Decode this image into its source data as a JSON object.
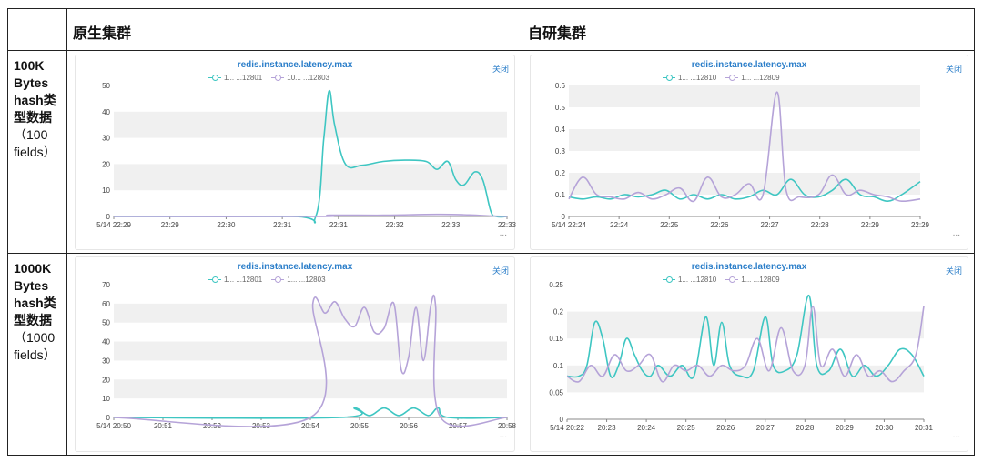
{
  "table": {
    "col1_header": "原生集群",
    "col2_header": "自研集群",
    "rows": [
      {
        "label_bold": [
          "100K",
          "Bytes",
          "hash类",
          "型数据"
        ],
        "label_normal": [
          "（100",
          "fields）"
        ]
      },
      {
        "label_bold": [
          "1000K",
          "Bytes",
          "hash类",
          "型数据"
        ],
        "label_normal": [
          "（1000",
          "fields）"
        ]
      }
    ]
  },
  "panel_ui": {
    "close_label": "关闭",
    "more_label": "..."
  },
  "colors": {
    "teal": "#3ec6c2",
    "purple": "#b5a3d8",
    "band": "#f0f0f0",
    "axis": "#888888"
  },
  "chart_data": [
    {
      "type": "line",
      "title": "redis.instance.latency.max",
      "legend": [
        {
          "name": "1...          ...12801",
          "color": "#3ec6c2"
        },
        {
          "name": "10...         ...12803",
          "color": "#b5a3d8"
        }
      ],
      "ylim": [
        0,
        50
      ],
      "yticks": [
        0,
        10,
        20,
        30,
        40,
        50
      ],
      "xticks": [
        "5/14 22:29",
        "22:29",
        "22:30",
        "22:31",
        "22:31",
        "22:32",
        "22:33",
        "22:33"
      ],
      "xrange": [
        0,
        7.3
      ],
      "series": [
        {
          "name": "12801",
          "color": "#3ec6c2",
          "points": [
            [
              0,
              0
            ],
            [
              3.3,
              0
            ],
            [
              3.75,
              0
            ],
            [
              3.9,
              30
            ],
            [
              4.0,
              48
            ],
            [
              4.1,
              35
            ],
            [
              4.3,
              20
            ],
            [
              4.6,
              19.5
            ],
            [
              5.0,
              21
            ],
            [
              5.4,
              21.5
            ],
            [
              5.8,
              21
            ],
            [
              6.0,
              18
            ],
            [
              6.2,
              21
            ],
            [
              6.35,
              14
            ],
            [
              6.5,
              12
            ],
            [
              6.7,
              17
            ],
            [
              6.85,
              14
            ],
            [
              7.0,
              2
            ],
            [
              7.1,
              0
            ],
            [
              7.3,
              0
            ]
          ]
        },
        {
          "name": "12803",
          "color": "#b5a3d8",
          "points": [
            [
              0,
              0
            ],
            [
              3.75,
              0
            ],
            [
              4.0,
              0.5
            ],
            [
              5.0,
              0.5
            ],
            [
              6.0,
              0.8
            ],
            [
              6.6,
              0.6
            ],
            [
              7.0,
              0.2
            ],
            [
              7.3,
              0
            ]
          ]
        }
      ]
    },
    {
      "type": "line",
      "title": "redis.instance.latency.max",
      "legend": [
        {
          "name": "1...          ...12810",
          "color": "#3ec6c2"
        },
        {
          "name": "1...          ...12809",
          "color": "#b5a3d8"
        }
      ],
      "ylim": [
        0,
        0.6
      ],
      "yticks": [
        0,
        0.1,
        0.2,
        0.3,
        0.4,
        0.5,
        0.6
      ],
      "xticks": [
        "5/14 22:24",
        "22:24",
        "22:25",
        "22:26",
        "22:27",
        "22:28",
        "22:29",
        "22:29"
      ],
      "xrange": [
        0,
        7.6
      ],
      "series": [
        {
          "name": "12810",
          "color": "#3ec6c2",
          "points": [
            [
              0,
              0.09
            ],
            [
              0.3,
              0.08
            ],
            [
              0.6,
              0.09
            ],
            [
              0.9,
              0.08
            ],
            [
              1.2,
              0.1
            ],
            [
              1.5,
              0.09
            ],
            [
              1.8,
              0.1
            ],
            [
              2.1,
              0.12
            ],
            [
              2.4,
              0.08
            ],
            [
              2.7,
              0.1
            ],
            [
              3.0,
              0.08
            ],
            [
              3.3,
              0.1
            ],
            [
              3.6,
              0.08
            ],
            [
              3.9,
              0.09
            ],
            [
              4.2,
              0.12
            ],
            [
              4.5,
              0.1
            ],
            [
              4.8,
              0.17
            ],
            [
              5.1,
              0.1
            ],
            [
              5.4,
              0.09
            ],
            [
              5.7,
              0.12
            ],
            [
              6.0,
              0.17
            ],
            [
              6.3,
              0.1
            ],
            [
              6.6,
              0.09
            ],
            [
              6.9,
              0.07
            ],
            [
              7.2,
              0.1
            ],
            [
              7.6,
              0.16
            ]
          ]
        },
        {
          "name": "12809",
          "color": "#b5a3d8",
          "points": [
            [
              0,
              0.08
            ],
            [
              0.3,
              0.18
            ],
            [
              0.6,
              0.1
            ],
            [
              0.9,
              0.09
            ],
            [
              1.2,
              0.08
            ],
            [
              1.5,
              0.11
            ],
            [
              1.8,
              0.08
            ],
            [
              2.1,
              0.1
            ],
            [
              2.4,
              0.13
            ],
            [
              2.7,
              0.07
            ],
            [
              3.0,
              0.18
            ],
            [
              3.3,
              0.09
            ],
            [
              3.6,
              0.1
            ],
            [
              3.9,
              0.15
            ],
            [
              4.2,
              0.1
            ],
            [
              4.5,
              0.57
            ],
            [
              4.7,
              0.12
            ],
            [
              5.0,
              0.09
            ],
            [
              5.4,
              0.1
            ],
            [
              5.7,
              0.19
            ],
            [
              6.0,
              0.1
            ],
            [
              6.3,
              0.12
            ],
            [
              6.6,
              0.1
            ],
            [
              6.9,
              0.09
            ],
            [
              7.2,
              0.07
            ],
            [
              7.6,
              0.08
            ]
          ]
        }
      ]
    },
    {
      "type": "line",
      "title": "redis.instance.latency.max",
      "legend": [
        {
          "name": "1...          ...12801",
          "color": "#3ec6c2"
        },
        {
          "name": "1...          ...12803",
          "color": "#b5a3d8"
        }
      ],
      "ylim": [
        0,
        70
      ],
      "yticks": [
        0,
        10,
        20,
        30,
        40,
        50,
        60,
        70
      ],
      "xticks": [
        "5/14 20:50",
        "20:51",
        "20:52",
        "20:53",
        "20:54",
        "20:55",
        "20:56",
        "20:57",
        "20:58"
      ],
      "xrange": [
        0,
        8
      ],
      "series": [
        {
          "name": "12801",
          "color": "#3ec6c2",
          "points": [
            [
              0,
              0
            ],
            [
              4.6,
              0
            ],
            [
              4.9,
              5
            ],
            [
              5.2,
              1
            ],
            [
              5.5,
              5
            ],
            [
              5.8,
              1
            ],
            [
              6.1,
              5
            ],
            [
              6.4,
              1
            ],
            [
              6.6,
              5
            ],
            [
              6.8,
              0
            ],
            [
              8,
              0
            ]
          ]
        },
        {
          "name": "12803",
          "color": "#b5a3d8",
          "points": [
            [
              0,
              0
            ],
            [
              4.0,
              0
            ],
            [
              4.05,
              60
            ],
            [
              4.3,
              55
            ],
            [
              4.5,
              61
            ],
            [
              4.7,
              52
            ],
            [
              4.9,
              48
            ],
            [
              5.1,
              58
            ],
            [
              5.3,
              45
            ],
            [
              5.5,
              47
            ],
            [
              5.7,
              60
            ],
            [
              5.85,
              25
            ],
            [
              6.0,
              32
            ],
            [
              6.15,
              58
            ],
            [
              6.3,
              30
            ],
            [
              6.45,
              59
            ],
            [
              6.55,
              58
            ],
            [
              6.65,
              0
            ],
            [
              8,
              0
            ]
          ]
        }
      ]
    },
    {
      "type": "line",
      "title": "redis.instance.latency.max",
      "legend": [
        {
          "name": "1...          ...12810",
          "color": "#3ec6c2"
        },
        {
          "name": "1...          ...12809",
          "color": "#b5a3d8"
        }
      ],
      "ylim": [
        0,
        0.25
      ],
      "yticks": [
        0,
        0.05,
        0.1,
        0.15,
        0.2,
        0.25
      ],
      "xticks": [
        "5/14 20:22",
        "20:23",
        "20:24",
        "20:25",
        "20:26",
        "20:27",
        "20:28",
        "20:29",
        "20:30",
        "20:31"
      ],
      "xrange": [
        0,
        9
      ],
      "series": [
        {
          "name": "12810",
          "color": "#3ec6c2",
          "points": [
            [
              0,
              0.08
            ],
            [
              0.3,
              0.08
            ],
            [
              0.5,
              0.1
            ],
            [
              0.7,
              0.18
            ],
            [
              0.9,
              0.15
            ],
            [
              1.1,
              0.08
            ],
            [
              1.3,
              0.1
            ],
            [
              1.5,
              0.15
            ],
            [
              1.7,
              0.12
            ],
            [
              1.9,
              0.09
            ],
            [
              2.1,
              0.08
            ],
            [
              2.3,
              0.1
            ],
            [
              2.6,
              0.08
            ],
            [
              2.9,
              0.1
            ],
            [
              3.2,
              0.08
            ],
            [
              3.5,
              0.19
            ],
            [
              3.7,
              0.1
            ],
            [
              3.9,
              0.18
            ],
            [
              4.1,
              0.1
            ],
            [
              4.4,
              0.08
            ],
            [
              4.7,
              0.09
            ],
            [
              5.0,
              0.19
            ],
            [
              5.2,
              0.1
            ],
            [
              5.5,
              0.09
            ],
            [
              5.8,
              0.12
            ],
            [
              6.1,
              0.23
            ],
            [
              6.3,
              0.1
            ],
            [
              6.6,
              0.09
            ],
            [
              6.9,
              0.13
            ],
            [
              7.2,
              0.08
            ],
            [
              7.5,
              0.1
            ],
            [
              7.8,
              0.08
            ],
            [
              8.1,
              0.1
            ],
            [
              8.4,
              0.13
            ],
            [
              8.7,
              0.12
            ],
            [
              9.0,
              0.08
            ]
          ]
        },
        {
          "name": "12809",
          "color": "#b5a3d8",
          "points": [
            [
              0,
              0.08
            ],
            [
              0.3,
              0.07
            ],
            [
              0.6,
              0.1
            ],
            [
              0.9,
              0.08
            ],
            [
              1.2,
              0.12
            ],
            [
              1.5,
              0.09
            ],
            [
              1.8,
              0.1
            ],
            [
              2.1,
              0.12
            ],
            [
              2.4,
              0.07
            ],
            [
              2.7,
              0.1
            ],
            [
              3.0,
              0.09
            ],
            [
              3.3,
              0.1
            ],
            [
              3.6,
              0.08
            ],
            [
              3.9,
              0.1
            ],
            [
              4.2,
              0.09
            ],
            [
              4.5,
              0.1
            ],
            [
              4.8,
              0.15
            ],
            [
              5.1,
              0.09
            ],
            [
              5.4,
              0.17
            ],
            [
              5.7,
              0.09
            ],
            [
              6.0,
              0.1
            ],
            [
              6.2,
              0.21
            ],
            [
              6.4,
              0.1
            ],
            [
              6.7,
              0.13
            ],
            [
              7.0,
              0.08
            ],
            [
              7.3,
              0.12
            ],
            [
              7.6,
              0.08
            ],
            [
              7.9,
              0.09
            ],
            [
              8.2,
              0.07
            ],
            [
              8.5,
              0.09
            ],
            [
              8.8,
              0.12
            ],
            [
              9.0,
              0.21
            ]
          ]
        }
      ]
    }
  ]
}
